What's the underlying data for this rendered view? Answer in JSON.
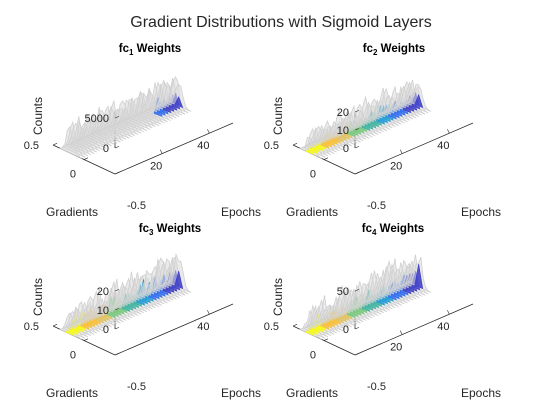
{
  "figure": {
    "title": "Gradient Distributions with Sigmoid Layers"
  },
  "chart_data": [
    {
      "type": "surface3d",
      "title_main": "fc",
      "title_sub": "1",
      "title_rest": " Weights",
      "xlabel": "Epochs",
      "ylabel": "Gradients",
      "zlabel": "Counts",
      "xlim": [
        0,
        30
      ],
      "ylim": [
        -0.5,
        0.5
      ],
      "zlim": [
        0,
        6000
      ],
      "xticks": [
        "20",
        "40"
      ],
      "yticks": [
        "0.5",
        "0",
        "-0.5"
      ],
      "zticks": [
        "0",
        "5000"
      ],
      "peak_max": [
        5000,
        6400
      ],
      "colored_ridge_from": 30
    },
    {
      "type": "surface3d",
      "title_main": "fc",
      "title_sub": "2",
      "title_rest": " Weights",
      "xlabel": "Epochs",
      "ylabel": "Gradients",
      "zlabel": "Counts",
      "xlim": [
        0,
        30
      ],
      "ylim": [
        -0.5,
        0.5
      ],
      "zlim": [
        0,
        20
      ],
      "xticks": [
        "20",
        "40"
      ],
      "yticks": [
        "0.5",
        "0",
        "-0.5"
      ],
      "zticks": [
        "0",
        "10",
        "20"
      ],
      "peak_max": [
        7,
        22
      ],
      "colored_ridge_from": 0
    },
    {
      "type": "surface3d",
      "title_main": "fc",
      "title_sub": "3",
      "title_rest": " Weights",
      "xlabel": "Epochs",
      "ylabel": "Gradients",
      "zlabel": "Counts",
      "xlim": [
        0,
        30
      ],
      "ylim": [
        -0.5,
        0.5
      ],
      "zlim": [
        0,
        20
      ],
      "xticks": [
        "40"
      ],
      "yticks": [
        "0.5",
        "0",
        "-0.5"
      ],
      "zticks": [
        "0",
        "10",
        "20"
      ],
      "peak_max": [
        5,
        26
      ],
      "colored_ridge_from": 0
    },
    {
      "type": "surface3d",
      "title_main": "fc",
      "title_sub": "4",
      "title_rest": " Weights",
      "xlabel": "Epochs",
      "ylabel": "Gradients",
      "zlabel": "Counts",
      "xlim": [
        0,
        30
      ],
      "ylim": [
        -0.5,
        0.5
      ],
      "zlim": [
        0,
        50
      ],
      "xticks": [
        "20",
        "40"
      ],
      "yticks": [
        "0.5",
        "0",
        "-0.5"
      ],
      "zticks": [
        "0",
        "50"
      ],
      "peak_max": [
        20,
        58
      ],
      "colored_ridge_from": 0
    }
  ],
  "colors": {
    "ridge_gray": "#d6d6d6",
    "axis": "#262626",
    "parula": [
      "#f9fb0e",
      "#fcc030",
      "#e3c35f",
      "#78c97d",
      "#3cb3a1",
      "#1a9ad6",
      "#2c6bf0",
      "#3a3ac8"
    ]
  }
}
